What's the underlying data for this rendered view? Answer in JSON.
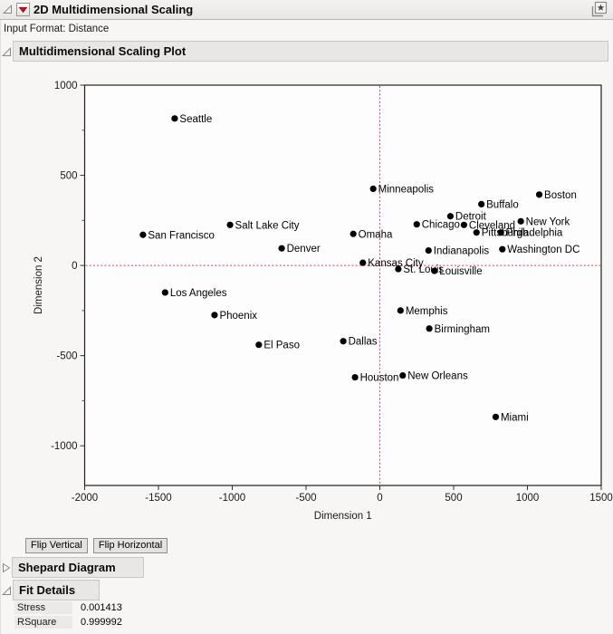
{
  "header": {
    "title": "2D Multidimensional Scaling",
    "input_format": "Input Format: Distance"
  },
  "icons": {
    "outline_open": "disclosure-open-icon",
    "outline_closed": "disclosure-closed-icon",
    "red_triangle_menu": "red-triangle-menu-icon",
    "journal": "journal-icon"
  },
  "sections": {
    "plot_title": "Multidimensional Scaling Plot",
    "shepard_title": "Shepard Diagram",
    "fit_title": "Fit Details"
  },
  "buttons": {
    "flip_vertical": "Flip Vertical",
    "flip_horizontal": "Flip Horizontal"
  },
  "fit_details": {
    "rows": [
      {
        "label": "Stress",
        "value": "0.001413"
      },
      {
        "label": "RSquare",
        "value": "0.999992"
      }
    ]
  },
  "colors": {
    "red_triangle": "#c8102e",
    "reference_line": "#e23b5b",
    "frame": "#1e1e1e",
    "point": "#000000",
    "section_header_bg": "#e9e7e5"
  },
  "chart_data": {
    "type": "scatter",
    "title": "",
    "xlabel": "Dimension 1",
    "ylabel": "Dimension 2",
    "xlim": [
      -2000,
      1500
    ],
    "ylim": [
      -1220,
      1000
    ],
    "xticks": [
      -2000,
      -1500,
      -1000,
      -500,
      0,
      500,
      1000,
      1500
    ],
    "yticks": [
      1000,
      500,
      0,
      -500,
      -1000
    ],
    "y_minor_ticks": [
      750,
      250,
      -250,
      -750
    ],
    "grid": false,
    "reference_lines": {
      "x": 0,
      "y": 0
    },
    "points": [
      {
        "label": "Seattle",
        "x": -1390,
        "y": 815
      },
      {
        "label": "San Francisco",
        "x": -1605,
        "y": 170
      },
      {
        "label": "Salt Lake City",
        "x": -1015,
        "y": 225
      },
      {
        "label": "Denver",
        "x": -665,
        "y": 95
      },
      {
        "label": "Los Angeles",
        "x": -1455,
        "y": -150
      },
      {
        "label": "Phoenix",
        "x": -1120,
        "y": -275
      },
      {
        "label": "El Paso",
        "x": -820,
        "y": -440
      },
      {
        "label": "Minneapolis",
        "x": -45,
        "y": 425
      },
      {
        "label": "Omaha",
        "x": -180,
        "y": 175
      },
      {
        "label": "Kansas City",
        "x": -115,
        "y": 15
      },
      {
        "label": "St. Louis",
        "x": 125,
        "y": -20
      },
      {
        "label": "Louisville",
        "x": 370,
        "y": -30
      },
      {
        "label": "Chicago",
        "x": 250,
        "y": 228
      },
      {
        "label": "Detroit",
        "x": 478,
        "y": 273
      },
      {
        "label": "Cleveland",
        "x": 570,
        "y": 225
      },
      {
        "label": "Pittsburgh",
        "x": 655,
        "y": 183
      },
      {
        "label": "Buffalo",
        "x": 688,
        "y": 340
      },
      {
        "label": "New York",
        "x": 955,
        "y": 245
      },
      {
        "label": "Philadelphia",
        "x": 820,
        "y": 183
      },
      {
        "label": "Washington DC",
        "x": 830,
        "y": 90
      },
      {
        "label": "Boston",
        "x": 1080,
        "y": 393
      },
      {
        "label": "Indianapolis",
        "x": 330,
        "y": 83
      },
      {
        "label": "Memphis",
        "x": 140,
        "y": -250
      },
      {
        "label": "Birmingham",
        "x": 335,
        "y": -350
      },
      {
        "label": "Dallas",
        "x": -248,
        "y": -420
      },
      {
        "label": "Houston",
        "x": -168,
        "y": -620
      },
      {
        "label": "New Orleans",
        "x": 155,
        "y": -610
      },
      {
        "label": "Miami",
        "x": 785,
        "y": -840
      }
    ]
  }
}
